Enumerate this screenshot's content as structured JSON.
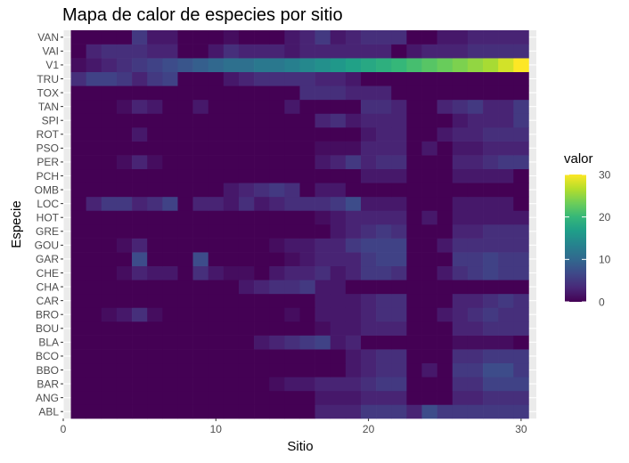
{
  "chart_data": {
    "type": "heatmap",
    "title": "Mapa de calor de especies por sitio",
    "xlabel": "Sitio",
    "ylabel": "Especie",
    "x": [
      1,
      2,
      3,
      4,
      5,
      6,
      7,
      8,
      9,
      10,
      11,
      12,
      13,
      14,
      15,
      16,
      17,
      18,
      19,
      20,
      21,
      22,
      23,
      24,
      25,
      26,
      27,
      28,
      29,
      30
    ],
    "xlim": [
      0,
      31
    ],
    "x_ticks": [
      0,
      10,
      20,
      30
    ],
    "species": [
      "ABL",
      "ANG",
      "BAR",
      "BBO",
      "BCO",
      "BLA",
      "BOU",
      "BRO",
      "CAR",
      "CHA",
      "CHE",
      "GAR",
      "GOU",
      "GRE",
      "HOT",
      "LOC",
      "OMB",
      "PCH",
      "PER",
      "PSO",
      "ROT",
      "SPI",
      "TAN",
      "TOX",
      "TRU",
      "V1",
      "VAI",
      "VAN"
    ],
    "values": [
      [
        0,
        0,
        0,
        0,
        0,
        0,
        0,
        0,
        0,
        0,
        0,
        0,
        0,
        0,
        0,
        0,
        3,
        3,
        3,
        5,
        5,
        5,
        3,
        7,
        5,
        5,
        5,
        5,
        5,
        5
      ],
      [
        0,
        0,
        0,
        0,
        0,
        0,
        0,
        0,
        0,
        0,
        0,
        0,
        0,
        0,
        0,
        0,
        2,
        2,
        2,
        3,
        3,
        3,
        0,
        0,
        0,
        3,
        3,
        4,
        4,
        4
      ],
      [
        0,
        0,
        0,
        0,
        0,
        0,
        0,
        0,
        0,
        0,
        0,
        0,
        0,
        1,
        2,
        2,
        3,
        3,
        3,
        4,
        5,
        5,
        0,
        0,
        0,
        4,
        4,
        6,
        6,
        6
      ],
      [
        0,
        0,
        0,
        0,
        0,
        0,
        0,
        0,
        0,
        0,
        0,
        0,
        0,
        0,
        0,
        0,
        0,
        0,
        2,
        3,
        4,
        4,
        0,
        2,
        0,
        5,
        5,
        7,
        7,
        5
      ],
      [
        0,
        0,
        0,
        0,
        0,
        0,
        0,
        0,
        0,
        0,
        0,
        0,
        0,
        0,
        0,
        0,
        0,
        0,
        2,
        3,
        4,
        4,
        0,
        0,
        0,
        4,
        4,
        5,
        5,
        5
      ],
      [
        0,
        0,
        0,
        0,
        0,
        0,
        0,
        0,
        0,
        0,
        0,
        0,
        2,
        3,
        4,
        5,
        6,
        2,
        3,
        0,
        0,
        0,
        0,
        0,
        0,
        1,
        1,
        1,
        1,
        0
      ],
      [
        0,
        0,
        0,
        0,
        0,
        0,
        0,
        0,
        0,
        0,
        0,
        0,
        0,
        0,
        0,
        0,
        1,
        2,
        2,
        3,
        3,
        3,
        0,
        0,
        0,
        3,
        3,
        4,
        4,
        4
      ],
      [
        0,
        0,
        1,
        2,
        4,
        1,
        0,
        0,
        0,
        0,
        0,
        0,
        0,
        0,
        1,
        0,
        2,
        2,
        2,
        3,
        4,
        4,
        0,
        0,
        2,
        3,
        4,
        5,
        4,
        4
      ],
      [
        0,
        0,
        0,
        0,
        0,
        0,
        0,
        0,
        0,
        0,
        0,
        0,
        0,
        0,
        0,
        0,
        2,
        2,
        2,
        3,
        4,
        4,
        0,
        0,
        0,
        3,
        3,
        4,
        5,
        4
      ],
      [
        0,
        0,
        0,
        0,
        0,
        0,
        0,
        0,
        0,
        0,
        0,
        2,
        3,
        4,
        4,
        5,
        2,
        2,
        0,
        0,
        0,
        0,
        0,
        0,
        0,
        0,
        0,
        0,
        0,
        0
      ],
      [
        0,
        0,
        0,
        1,
        3,
        2,
        2,
        0,
        4,
        2,
        1,
        1,
        0,
        2,
        3,
        3,
        4,
        2,
        3,
        5,
        5,
        4,
        0,
        0,
        2,
        4,
        5,
        6,
        5,
        5
      ],
      [
        0,
        0,
        0,
        0,
        7,
        0,
        0,
        0,
        7,
        0,
        0,
        0,
        0,
        0,
        1,
        2,
        3,
        3,
        3,
        5,
        6,
        6,
        0,
        0,
        0,
        5,
        5,
        6,
        5,
        5
      ],
      [
        0,
        0,
        0,
        1,
        3,
        0,
        0,
        0,
        0,
        0,
        0,
        0,
        0,
        1,
        2,
        2,
        3,
        3,
        5,
        6,
        6,
        6,
        0,
        0,
        2,
        4,
        4,
        4,
        4,
        4
      ],
      [
        0,
        0,
        0,
        0,
        0,
        0,
        0,
        0,
        0,
        0,
        0,
        0,
        0,
        0,
        0,
        0,
        0,
        2,
        3,
        4,
        5,
        4,
        0,
        0,
        0,
        3,
        3,
        4,
        4,
        4
      ],
      [
        0,
        0,
        0,
        0,
        0,
        0,
        0,
        0,
        0,
        0,
        0,
        0,
        0,
        0,
        0,
        0,
        1,
        2,
        3,
        3,
        3,
        3,
        0,
        2,
        0,
        2,
        2,
        2,
        2,
        2
      ],
      [
        0,
        3,
        5,
        5,
        3,
        4,
        6,
        0,
        3,
        3,
        2,
        4,
        2,
        3,
        4,
        4,
        4,
        5,
        7,
        2,
        2,
        2,
        0,
        0,
        0,
        2,
        2,
        2,
        2,
        0
      ],
      [
        0,
        0,
        0,
        0,
        0,
        0,
        0,
        0,
        0,
        0,
        2,
        3,
        4,
        5,
        4,
        0,
        2,
        2,
        0,
        0,
        0,
        0,
        0,
        0,
        0,
        0,
        0,
        0,
        0,
        0
      ],
      [
        0,
        0,
        0,
        0,
        0,
        0,
        0,
        0,
        0,
        0,
        0,
        0,
        0,
        0,
        0,
        0,
        0,
        0,
        0,
        2,
        2,
        2,
        0,
        0,
        0,
        2,
        2,
        2,
        2,
        0
      ],
      [
        0,
        0,
        0,
        1,
        3,
        1,
        0,
        0,
        0,
        0,
        0,
        0,
        0,
        0,
        0,
        0,
        2,
        3,
        5,
        3,
        4,
        4,
        0,
        0,
        0,
        3,
        3,
        4,
        5,
        5
      ],
      [
        0,
        0,
        0,
        0,
        0,
        0,
        0,
        0,
        0,
        0,
        0,
        0,
        0,
        0,
        0,
        0,
        1,
        1,
        1,
        3,
        3,
        3,
        0,
        2,
        0,
        2,
        2,
        3,
        3,
        3
      ],
      [
        0,
        0,
        0,
        0,
        2,
        0,
        0,
        0,
        0,
        0,
        0,
        0,
        0,
        0,
        0,
        0,
        0,
        0,
        0,
        2,
        3,
        3,
        0,
        0,
        2,
        3,
        3,
        4,
        4,
        4
      ],
      [
        0,
        0,
        0,
        0,
        0,
        0,
        0,
        0,
        0,
        0,
        0,
        0,
        0,
        0,
        0,
        0,
        3,
        4,
        2,
        3,
        3,
        3,
        0,
        0,
        0,
        2,
        3,
        3,
        3,
        5
      ],
      [
        0,
        0,
        0,
        1,
        3,
        2,
        0,
        0,
        2,
        0,
        0,
        0,
        0,
        0,
        2,
        0,
        0,
        0,
        0,
        4,
        4,
        3,
        0,
        0,
        3,
        4,
        5,
        3,
        3,
        5
      ],
      [
        0,
        0,
        0,
        0,
        0,
        0,
        0,
        0,
        0,
        0,
        0,
        0,
        0,
        0,
        0,
        4,
        4,
        4,
        3,
        3,
        3,
        0,
        0,
        0,
        0,
        0,
        0,
        0,
        0,
        0
      ],
      [
        4,
        6,
        6,
        5,
        3,
        5,
        6,
        0,
        0,
        0,
        2,
        3,
        4,
        4,
        4,
        4,
        3,
        3,
        2,
        0,
        0,
        0,
        0,
        0,
        0,
        0,
        0,
        0,
        0,
        0
      ],
      [
        1,
        2,
        3,
        4,
        5,
        6,
        7,
        8,
        9,
        10,
        11,
        11,
        12,
        12,
        13,
        14,
        15,
        16,
        17,
        18,
        19,
        20,
        21,
        22,
        23,
        24,
        25,
        26,
        28,
        30
      ],
      [
        0,
        3,
        4,
        4,
        4,
        3,
        3,
        0,
        0,
        2,
        4,
        3,
        3,
        3,
        2,
        3,
        3,
        3,
        3,
        3,
        3,
        0,
        2,
        3,
        3,
        3,
        4,
        4,
        4,
        4
      ],
      [
        0,
        0,
        0,
        0,
        5,
        2,
        2,
        0,
        0,
        0,
        1,
        0,
        0,
        0,
        2,
        3,
        5,
        2,
        3,
        4,
        4,
        4,
        0,
        0,
        2,
        2,
        3,
        3,
        3,
        3
      ]
    ],
    "zlim": [
      0,
      30
    ],
    "legend": {
      "title": "valor",
      "ticks": [
        0,
        10,
        20,
        30
      ],
      "position": "right"
    },
    "colors": {
      "panel_bg": "#ebebeb",
      "grid": "#ffffff",
      "axis_text": "#4d4d4d",
      "title_text": "#000000",
      "tick_mark": "#333333"
    },
    "colorscale": [
      "#440154",
      "#482878",
      "#3e4989",
      "#31688e",
      "#26828e",
      "#1f9e89",
      "#35b779",
      "#6ece58",
      "#b5de2b",
      "#fde725"
    ]
  }
}
